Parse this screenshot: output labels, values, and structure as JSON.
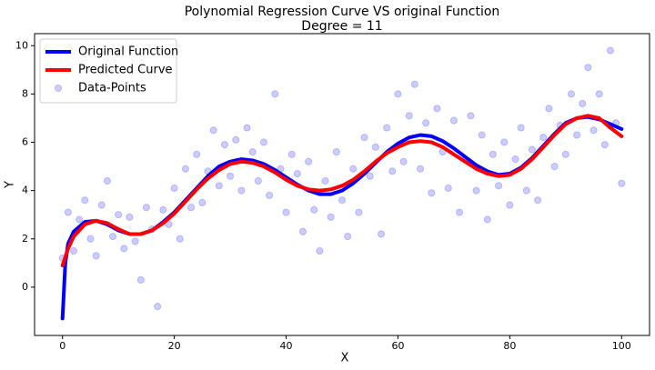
{
  "chart_data": {
    "type": "line",
    "title": "Polynomial Regression Curve VS original Function",
    "subtitle": "Degree = 11",
    "x_label": "X",
    "y_label": "Y",
    "xlim": [
      -5,
      105
    ],
    "ylim": [
      -2,
      10.5
    ],
    "xticks": [
      0,
      20,
      40,
      60,
      80,
      100
    ],
    "yticks": [
      0,
      2,
      4,
      6,
      8,
      10
    ],
    "legend": "upper left",
    "series": [
      {
        "name": "Original Function",
        "type": "line",
        "color": "#0000ff",
        "x": [
          0,
          0.5,
          1,
          2,
          4,
          6,
          8,
          10,
          12,
          14,
          16,
          18,
          20,
          22,
          24,
          26,
          28,
          30,
          32,
          34,
          36,
          38,
          40,
          42,
          44,
          46,
          48,
          50,
          52,
          54,
          56,
          58,
          60,
          62,
          64,
          66,
          68,
          70,
          72,
          74,
          76,
          78,
          80,
          82,
          84,
          86,
          88,
          90,
          92,
          94,
          96,
          98,
          100
        ],
        "values": [
          -1.3,
          1.0,
          1.8,
          2.3,
          2.7,
          2.75,
          2.6,
          2.35,
          2.2,
          2.2,
          2.35,
          2.7,
          3.1,
          3.6,
          4.1,
          4.6,
          5.0,
          5.2,
          5.3,
          5.25,
          5.1,
          4.85,
          4.55,
          4.25,
          4.0,
          3.85,
          3.85,
          4.0,
          4.3,
          4.7,
          5.15,
          5.6,
          5.95,
          6.2,
          6.3,
          6.25,
          6.05,
          5.75,
          5.4,
          5.05,
          4.8,
          4.65,
          4.7,
          4.95,
          5.35,
          5.85,
          6.35,
          6.8,
          7.0,
          7.05,
          6.95,
          6.75,
          6.55
        ]
      },
      {
        "name": "Predicted Curve",
        "type": "line",
        "color": "#ff0000",
        "x": [
          0,
          1,
          2,
          4,
          6,
          8,
          10,
          12,
          14,
          16,
          18,
          20,
          22,
          24,
          26,
          28,
          30,
          32,
          34,
          36,
          38,
          40,
          42,
          44,
          46,
          48,
          50,
          52,
          54,
          56,
          58,
          60,
          62,
          64,
          66,
          68,
          70,
          72,
          74,
          76,
          78,
          80,
          82,
          84,
          86,
          88,
          90,
          92,
          94,
          96,
          98,
          100
        ],
        "values": [
          0.9,
          1.6,
          2.1,
          2.6,
          2.75,
          2.65,
          2.4,
          2.2,
          2.2,
          2.35,
          2.65,
          3.05,
          3.55,
          4.05,
          4.5,
          4.85,
          5.1,
          5.2,
          5.15,
          5.0,
          4.75,
          4.45,
          4.2,
          4.05,
          4.0,
          4.05,
          4.2,
          4.45,
          4.8,
          5.2,
          5.55,
          5.8,
          6.0,
          6.05,
          6.0,
          5.8,
          5.5,
          5.2,
          4.9,
          4.7,
          4.6,
          4.65,
          4.9,
          5.3,
          5.8,
          6.3,
          6.75,
          7.0,
          7.1,
          7.0,
          6.6,
          6.25
        ]
      },
      {
        "name": "Data-Points",
        "type": "scatter",
        "color": "#0000ff",
        "opacity": 0.2,
        "x": [
          0,
          1,
          2,
          3,
          4,
          5,
          6,
          7,
          8,
          9,
          10,
          11,
          12,
          13,
          14,
          15,
          16,
          17,
          18,
          19,
          20,
          21,
          22,
          23,
          24,
          25,
          26,
          27,
          28,
          29,
          30,
          31,
          32,
          33,
          34,
          35,
          36,
          37,
          38,
          39,
          40,
          41,
          42,
          43,
          44,
          45,
          46,
          47,
          48,
          49,
          50,
          51,
          52,
          53,
          54,
          55,
          56,
          57,
          58,
          59,
          60,
          61,
          62,
          63,
          64,
          65,
          66,
          67,
          68,
          69,
          70,
          71,
          72,
          73,
          74,
          75,
          76,
          77,
          78,
          79,
          80,
          81,
          82,
          83,
          84,
          85,
          86,
          87,
          88,
          89,
          90,
          91,
          92,
          93,
          94,
          95,
          96,
          97,
          98,
          99,
          100
        ],
        "values": [
          1.2,
          3.1,
          1.5,
          2.8,
          3.6,
          2.0,
          1.3,
          3.4,
          4.4,
          2.1,
          3.0,
          1.6,
          2.9,
          1.9,
          0.3,
          3.3,
          2.4,
          -0.8,
          3.2,
          2.6,
          4.1,
          2.0,
          4.9,
          3.3,
          5.5,
          3.5,
          4.8,
          6.5,
          4.2,
          5.9,
          4.6,
          6.1,
          4.0,
          6.6,
          5.6,
          4.4,
          6.0,
          3.8,
          8.0,
          4.9,
          3.1,
          5.5,
          4.7,
          2.3,
          5.2,
          3.2,
          1.5,
          4.4,
          2.9,
          5.6,
          3.6,
          2.1,
          4.9,
          3.1,
          6.2,
          4.6,
          5.8,
          2.2,
          6.6,
          4.8,
          8.0,
          5.2,
          7.1,
          8.4,
          4.9,
          6.8,
          3.9,
          7.4,
          5.6,
          4.1,
          6.9,
          3.1,
          5.3,
          7.1,
          4.0,
          6.3,
          2.8,
          5.5,
          4.2,
          6.0,
          3.4,
          5.3,
          6.6,
          4.0,
          5.7,
          3.6,
          6.2,
          7.4,
          5.0,
          6.7,
          5.5,
          8.0,
          6.3,
          7.6,
          9.1,
          6.5,
          8.0,
          5.9,
          9.8,
          6.8,
          4.3
        ]
      }
    ]
  }
}
